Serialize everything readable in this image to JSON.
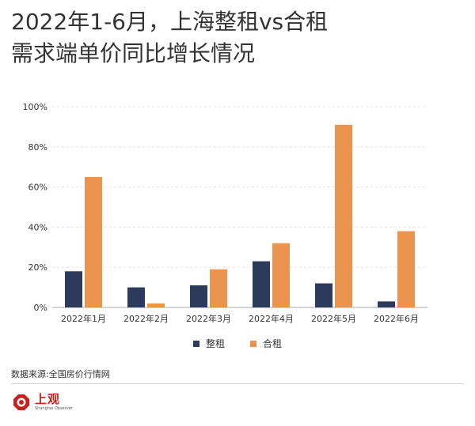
{
  "title": {
    "line1": "2022年1-6月，上海整租vs合租",
    "line2": "需求端单价同比增长情况"
  },
  "chart_data": {
    "type": "bar",
    "categories": [
      "2022年1月",
      "2022年2月",
      "2022年3月",
      "2022年4月",
      "2022年5月",
      "2022年6月"
    ],
    "series": [
      {
        "name": "整租",
        "values": [
          18,
          10,
          11,
          23,
          12,
          3
        ],
        "color": "#2c3a5c"
      },
      {
        "name": "合租",
        "values": [
          65,
          2,
          19,
          32,
          91,
          38
        ],
        "color": "#eb9450"
      }
    ],
    "ylim": [
      0,
      100
    ],
    "yticks": [
      0,
      20,
      40,
      60,
      80,
      100
    ],
    "ytick_labels": [
      "0%",
      "20%",
      "40%",
      "60%",
      "80%",
      "100%"
    ],
    "grid": true,
    "legend_placement": "bottom-center"
  },
  "legend": {
    "item1": "整租",
    "item2": "合租"
  },
  "source": "数据来源:全国房价行情网",
  "logo": {
    "name": "上观",
    "sub": "Shanghai Observer"
  },
  "colors": {
    "series1": "#2c3a5c",
    "series2": "#eb9450",
    "grid": "#e3e3e3",
    "brand": "#c8201d"
  }
}
